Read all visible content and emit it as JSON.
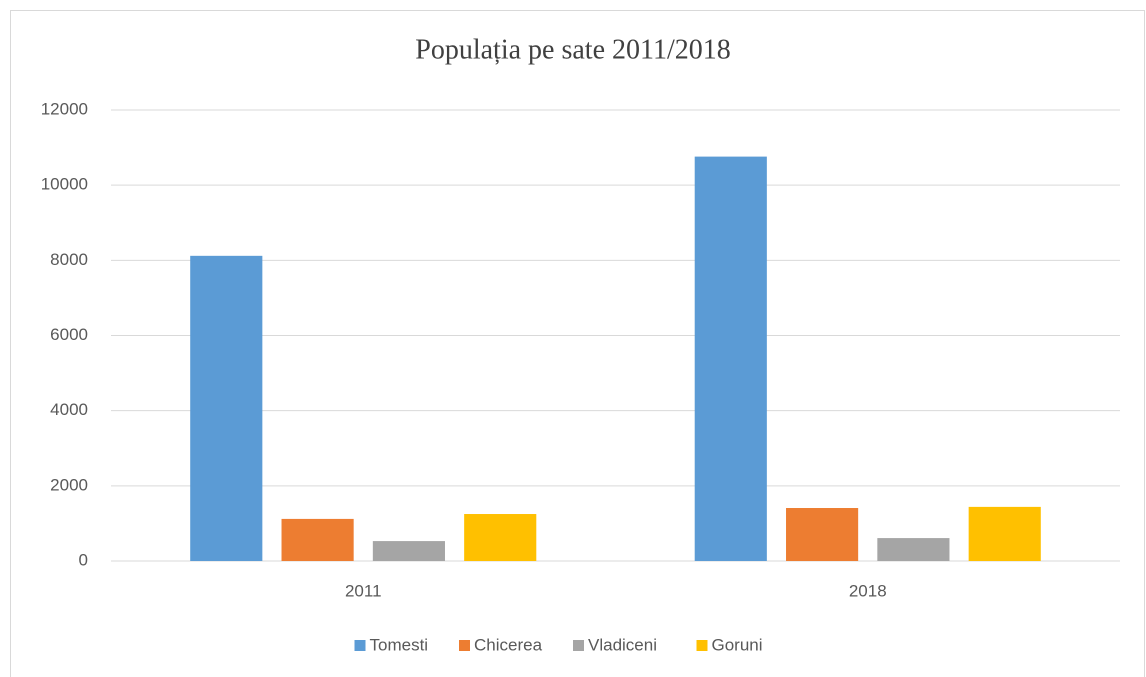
{
  "chart_data": {
    "type": "bar",
    "title": "Populația pe sate 2011/2018",
    "categories": [
      "2011",
      "2018"
    ],
    "series": [
      {
        "name": "Tomesti",
        "color": "#5b9bd5",
        "values": [
          8120,
          10760
        ]
      },
      {
        "name": "Chicerea",
        "color": "#ed7d31",
        "values": [
          1120,
          1410
        ]
      },
      {
        "name": "Vladiceni",
        "color": "#a5a5a5",
        "values": [
          530,
          610
        ]
      },
      {
        "name": "Goruni",
        "color": "#ffc000",
        "values": [
          1250,
          1440
        ]
      }
    ],
    "ylim": [
      0,
      12000
    ],
    "yticks": [
      0,
      2000,
      4000,
      6000,
      8000,
      10000,
      12000
    ],
    "grid": true,
    "legend": "bottom"
  }
}
